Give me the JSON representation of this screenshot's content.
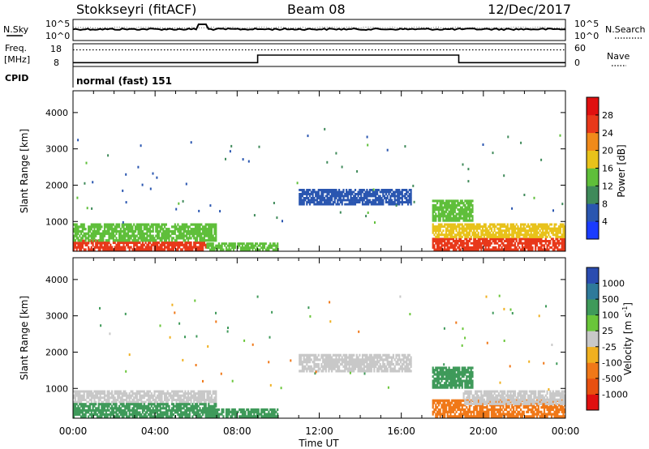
{
  "header": {
    "station": "Stokkseyri (fitACF)",
    "beam": "Beam 08",
    "date": "12/Dec/2017"
  },
  "noise_panel": {
    "left_label": "N.Sky",
    "left_ticks": [
      "10^5",
      "10^0"
    ],
    "right_label": "N.Search",
    "right_ticks": [
      "10^5",
      "10^0"
    ]
  },
  "freq_panel": {
    "left_label_line1": "Freq.",
    "left_label_line2": "[MHz]",
    "left_ticks": [
      "18",
      "8"
    ],
    "right_label": "Nave",
    "right_ticks": [
      "60",
      "0"
    ],
    "cpid_label": "CPID",
    "cpid_value": "normal (fast) 151"
  },
  "x_axis": {
    "label": "Time UT",
    "ticks": [
      "00:00",
      "04:00",
      "08:00",
      "12:00",
      "16:00",
      "20:00",
      "00:00"
    ]
  },
  "power_colorbar": {
    "label": "Power [dB]",
    "ticks": [
      "4",
      "8",
      "12",
      "16",
      "20",
      "24",
      "28"
    ],
    "colors": [
      "#1a3cff",
      "#2a56b0",
      "#3f8a5a",
      "#5fbf3a",
      "#e8c21a",
      "#f08a1a",
      "#e8381a",
      "#e01010"
    ]
  },
  "velocity_colorbar": {
    "label": "Velocity [m s^-1]",
    "ticks": [
      "1000",
      "500",
      "100",
      "25",
      "-25",
      "-100",
      "-500",
      "-1000"
    ],
    "colors": [
      "#2a4cb0",
      "#2f7a9a",
      "#3f9a5a",
      "#6ac63a",
      "#c8c8c8",
      "#f0b020",
      "#f07818",
      "#e85010",
      "#e01010"
    ]
  },
  "chart_data": [
    {
      "type": "line",
      "title": "",
      "series": [
        {
          "name": "N.Sky",
          "x": [
            0,
            6,
            6.2,
            6.4,
            24
          ],
          "y": [
            "high",
            "high",
            "spike",
            "high",
            "high"
          ]
        },
        {
          "name": "N.Search",
          "x": [],
          "y": []
        }
      ]
    },
    {
      "type": "line",
      "series": [
        {
          "name": "Freq.",
          "x": [
            0,
            9,
            9,
            18.8,
            18.8,
            24
          ],
          "y": [
            8,
            8,
            12,
            12,
            8,
            8
          ]
        },
        {
          "name": "Nave",
          "x": [
            0,
            24
          ],
          "y": [
            44,
            44
          ]
        }
      ]
    },
    {
      "type": "heatmap",
      "ylabel": "Slant Range [km]",
      "xlabel": "Time UT",
      "xlim": [
        0,
        24
      ],
      "ylim": [
        180,
        4600
      ],
      "yticks": [
        1000,
        2000,
        3000,
        4000
      ],
      "clim": [
        0,
        30
      ],
      "regions": [
        {
          "t": [
            0,
            1.5
          ],
          "r": [
            200,
            500
          ],
          "v": 26
        },
        {
          "t": [
            1.5,
            6.5
          ],
          "r": [
            200,
            450
          ],
          "v": 24
        },
        {
          "t": [
            0,
            7
          ],
          "r": [
            450,
            950
          ],
          "v": 14
        },
        {
          "t": [
            6.5,
            10
          ],
          "r": [
            200,
            420
          ],
          "v": 12
        },
        {
          "t": [
            11,
            16.5
          ],
          "r": [
            1450,
            1900
          ],
          "v": 7
        },
        {
          "t": [
            17.5,
            19.5
          ],
          "r": [
            1000,
            1600
          ],
          "v": 14
        },
        {
          "t": [
            17.5,
            24
          ],
          "r": [
            200,
            550
          ],
          "v": 26
        },
        {
          "t": [
            17.5,
            24
          ],
          "r": [
            550,
            950
          ],
          "v": 18
        }
      ]
    },
    {
      "type": "heatmap",
      "ylabel": "Slant Range [km]",
      "xlabel": "Time UT",
      "xlim": [
        0,
        24
      ],
      "ylim": [
        180,
        4600
      ],
      "yticks": [
        1000,
        2000,
        3000,
        4000
      ],
      "clim": [
        -1000,
        1000
      ],
      "regions": [
        {
          "t": [
            0,
            7
          ],
          "r": [
            600,
            950
          ],
          "v": 0
        },
        {
          "t": [
            0,
            7
          ],
          "r": [
            200,
            600
          ],
          "v": 300
        },
        {
          "t": [
            6.5,
            10
          ],
          "r": [
            200,
            450
          ],
          "v": 100
        },
        {
          "t": [
            11,
            16.5
          ],
          "r": [
            1450,
            1950
          ],
          "v": 0
        },
        {
          "t": [
            17.5,
            24
          ],
          "r": [
            200,
            700
          ],
          "v": -300
        },
        {
          "t": [
            19,
            24
          ],
          "r": [
            550,
            950
          ],
          "v": 0
        },
        {
          "t": [
            17.5,
            19.5
          ],
          "r": [
            1000,
            1600
          ],
          "v": 150
        }
      ]
    }
  ]
}
